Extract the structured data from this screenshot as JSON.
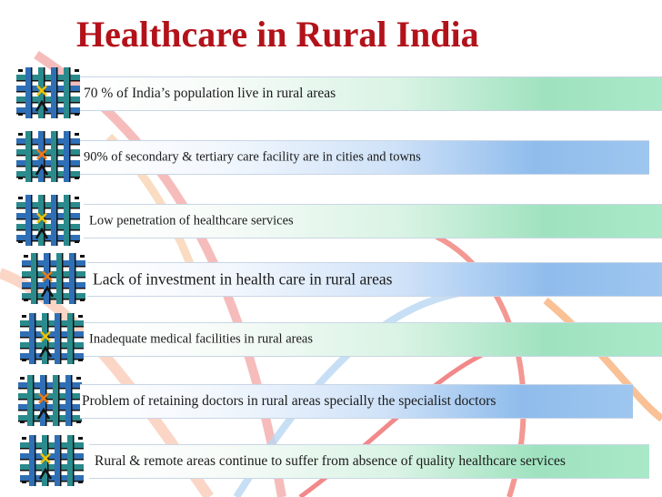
{
  "slide": {
    "title": "Healthcare in Rural India",
    "bullets": [
      {
        "text": "70 % of  India’s population live in rural areas",
        "bar": "green",
        "x_color": "#f2c100"
      },
      {
        "text": "90% of secondary & tertiary care facility are in cities and towns",
        "bar": "blue",
        "x_color": "#f07a10"
      },
      {
        "text": "Low penetration of healthcare services",
        "bar": "green",
        "x_color": "#f2c100"
      },
      {
        "text": "Lack of investment in health care in rural areas",
        "bar": "blue",
        "x_color": "#f07a10"
      },
      {
        "text": "Inadequate medical facilities in rural areas",
        "bar": "green",
        "x_color": "#f2c100"
      },
      {
        "text": "Problem of retaining doctors in rural areas specially the specialist doctors",
        "bar": "blue",
        "x_color": "#f07a10"
      },
      {
        "text": "Rural & remote areas continue to suffer from absence of quality healthcare services",
        "bar": "green",
        "x_color": "#f2c100"
      }
    ]
  },
  "theme": {
    "title_color": "#b3121a",
    "ribbon_red": "#e8262a",
    "ribbon_orange": "#f7b27a",
    "ribbon_blue": "#9fc6ea",
    "ribbon_light": "#fbd6c6",
    "grid_teal": "#2a8a8c",
    "grid_blue": "#2f6fb5"
  }
}
